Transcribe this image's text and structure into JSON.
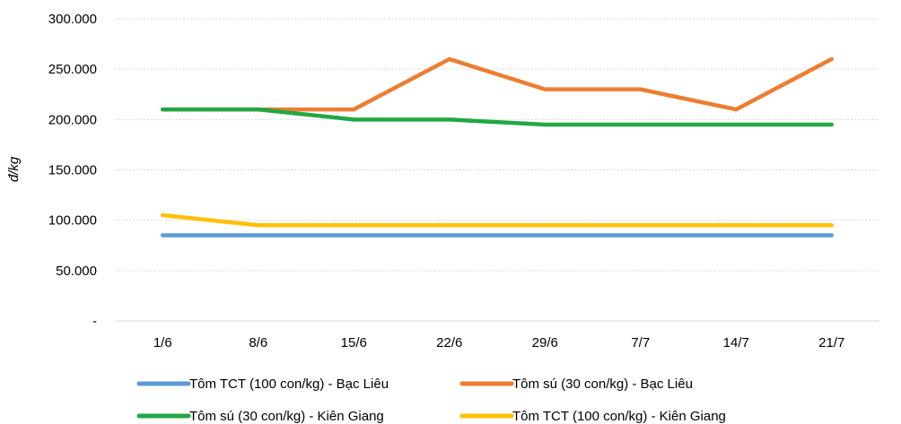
{
  "chart_data": {
    "type": "line",
    "title": "",
    "xlabel": "",
    "ylabel": "đ/kg",
    "categories": [
      "1/6",
      "8/6",
      "15/6",
      "22/6",
      "29/6",
      "7/7",
      "14/7",
      "21/7"
    ],
    "ylim": [
      0,
      300000
    ],
    "yticks": [
      0,
      50000,
      100000,
      150000,
      200000,
      250000,
      300000
    ],
    "ytick_labels": [
      "-",
      "50.000",
      "100.000",
      "150.000",
      "200.000",
      "250.000",
      "300.000"
    ],
    "grid": "horizontal dotted",
    "legend_position": "bottom",
    "series": [
      {
        "name": "Tôm TCT (100 con/kg) - Bạc Liêu",
        "color": "#5B9BD5",
        "values": [
          85000,
          85000,
          85000,
          85000,
          85000,
          85000,
          85000,
          85000
        ]
      },
      {
        "name": "Tôm sú (30 con/kg) - Bạc Liêu",
        "color": "#ED7D31",
        "values": [
          210000,
          210000,
          210000,
          260000,
          230000,
          230000,
          210000,
          260000
        ]
      },
      {
        "name": "Tôm sú (30 con/kg) - Kiên Giang",
        "color": "#21A844",
        "values": [
          210000,
          210000,
          200000,
          200000,
          195000,
          195000,
          195000,
          195000
        ]
      },
      {
        "name": "Tôm TCT (100 con/kg) - Kiên Giang",
        "color": "#FFC000",
        "values": [
          105000,
          95000,
          95000,
          95000,
          95000,
          95000,
          95000,
          95000
        ]
      }
    ]
  }
}
